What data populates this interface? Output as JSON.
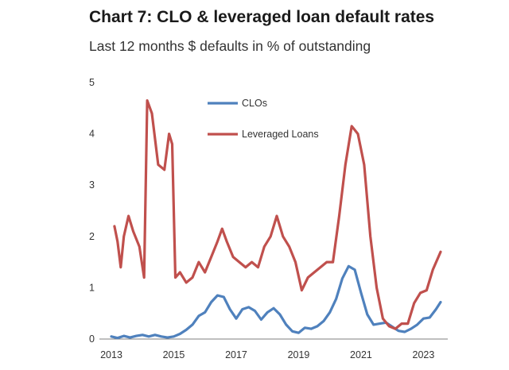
{
  "chart_data": {
    "type": "line",
    "title": "Chart 7: CLO & leveraged loan default rates",
    "subtitle": "Last 12 months $ defaults in % of outstanding",
    "xlabel": "",
    "ylabel": "",
    "xlim": [
      2013,
      2023.6
    ],
    "ylim": [
      0,
      5
    ],
    "x_ticks": [
      "2013",
      "2015",
      "2017",
      "2019",
      "2021",
      "2023"
    ],
    "y_ticks": [
      "0",
      "1",
      "2",
      "3",
      "4",
      "5"
    ],
    "grid": false,
    "legend_position": "top-center",
    "series": [
      {
        "name": "CLOs",
        "color": "#4f81bd",
        "points": [
          [
            2013.0,
            0.05
          ],
          [
            2013.2,
            0.02
          ],
          [
            2013.4,
            0.06
          ],
          [
            2013.6,
            0.03
          ],
          [
            2013.8,
            0.06
          ],
          [
            2014.0,
            0.08
          ],
          [
            2014.2,
            0.05
          ],
          [
            2014.4,
            0.08
          ],
          [
            2014.6,
            0.05
          ],
          [
            2014.8,
            0.03
          ],
          [
            2015.0,
            0.05
          ],
          [
            2015.2,
            0.1
          ],
          [
            2015.4,
            0.18
          ],
          [
            2015.6,
            0.28
          ],
          [
            2015.8,
            0.45
          ],
          [
            2016.0,
            0.52
          ],
          [
            2016.2,
            0.72
          ],
          [
            2016.4,
            0.85
          ],
          [
            2016.6,
            0.82
          ],
          [
            2016.8,
            0.58
          ],
          [
            2017.0,
            0.4
          ],
          [
            2017.2,
            0.58
          ],
          [
            2017.4,
            0.62
          ],
          [
            2017.6,
            0.55
          ],
          [
            2017.8,
            0.38
          ],
          [
            2018.0,
            0.52
          ],
          [
            2018.2,
            0.6
          ],
          [
            2018.4,
            0.48
          ],
          [
            2018.6,
            0.28
          ],
          [
            2018.8,
            0.15
          ],
          [
            2019.0,
            0.12
          ],
          [
            2019.2,
            0.22
          ],
          [
            2019.4,
            0.2
          ],
          [
            2019.6,
            0.25
          ],
          [
            2019.8,
            0.35
          ],
          [
            2020.0,
            0.52
          ],
          [
            2020.2,
            0.78
          ],
          [
            2020.4,
            1.18
          ],
          [
            2020.6,
            1.42
          ],
          [
            2020.8,
            1.35
          ],
          [
            2021.0,
            0.9
          ],
          [
            2021.2,
            0.48
          ],
          [
            2021.4,
            0.28
          ],
          [
            2021.6,
            0.3
          ],
          [
            2021.8,
            0.32
          ],
          [
            2022.0,
            0.24
          ],
          [
            2022.2,
            0.16
          ],
          [
            2022.4,
            0.14
          ],
          [
            2022.6,
            0.2
          ],
          [
            2022.8,
            0.28
          ],
          [
            2023.0,
            0.4
          ],
          [
            2023.2,
            0.42
          ],
          [
            2023.4,
            0.58
          ],
          [
            2023.55,
            0.72
          ]
        ]
      },
      {
        "name": "Leveraged Loans",
        "color": "#c0504d",
        "points": [
          [
            2013.1,
            2.2
          ],
          [
            2013.2,
            1.9
          ],
          [
            2013.3,
            1.4
          ],
          [
            2013.4,
            2.0
          ],
          [
            2013.55,
            2.4
          ],
          [
            2013.7,
            2.1
          ],
          [
            2013.9,
            1.8
          ],
          [
            2014.05,
            1.2
          ],
          [
            2014.15,
            4.65
          ],
          [
            2014.3,
            4.4
          ],
          [
            2014.5,
            3.4
          ],
          [
            2014.7,
            3.3
          ],
          [
            2014.85,
            4.0
          ],
          [
            2014.95,
            3.8
          ],
          [
            2015.05,
            1.2
          ],
          [
            2015.2,
            1.3
          ],
          [
            2015.4,
            1.1
          ],
          [
            2015.6,
            1.2
          ],
          [
            2015.8,
            1.5
          ],
          [
            2016.0,
            1.3
          ],
          [
            2016.2,
            1.6
          ],
          [
            2016.4,
            1.9
          ],
          [
            2016.55,
            2.15
          ],
          [
            2016.7,
            1.9
          ],
          [
            2016.9,
            1.6
          ],
          [
            2017.1,
            1.5
          ],
          [
            2017.3,
            1.4
          ],
          [
            2017.5,
            1.5
          ],
          [
            2017.7,
            1.4
          ],
          [
            2017.9,
            1.8
          ],
          [
            2018.1,
            2.0
          ],
          [
            2018.3,
            2.4
          ],
          [
            2018.5,
            2.0
          ],
          [
            2018.7,
            1.8
          ],
          [
            2018.9,
            1.5
          ],
          [
            2019.1,
            0.95
          ],
          [
            2019.3,
            1.2
          ],
          [
            2019.5,
            1.3
          ],
          [
            2019.7,
            1.4
          ],
          [
            2019.9,
            1.5
          ],
          [
            2020.1,
            1.5
          ],
          [
            2020.3,
            2.4
          ],
          [
            2020.5,
            3.4
          ],
          [
            2020.7,
            4.15
          ],
          [
            2020.9,
            4.0
          ],
          [
            2021.1,
            3.4
          ],
          [
            2021.3,
            2.0
          ],
          [
            2021.5,
            1.0
          ],
          [
            2021.7,
            0.4
          ],
          [
            2021.9,
            0.25
          ],
          [
            2022.1,
            0.2
          ],
          [
            2022.3,
            0.3
          ],
          [
            2022.5,
            0.3
          ],
          [
            2022.7,
            0.7
          ],
          [
            2022.9,
            0.9
          ],
          [
            2023.1,
            0.95
          ],
          [
            2023.3,
            1.35
          ],
          [
            2023.55,
            1.7
          ]
        ]
      }
    ]
  }
}
